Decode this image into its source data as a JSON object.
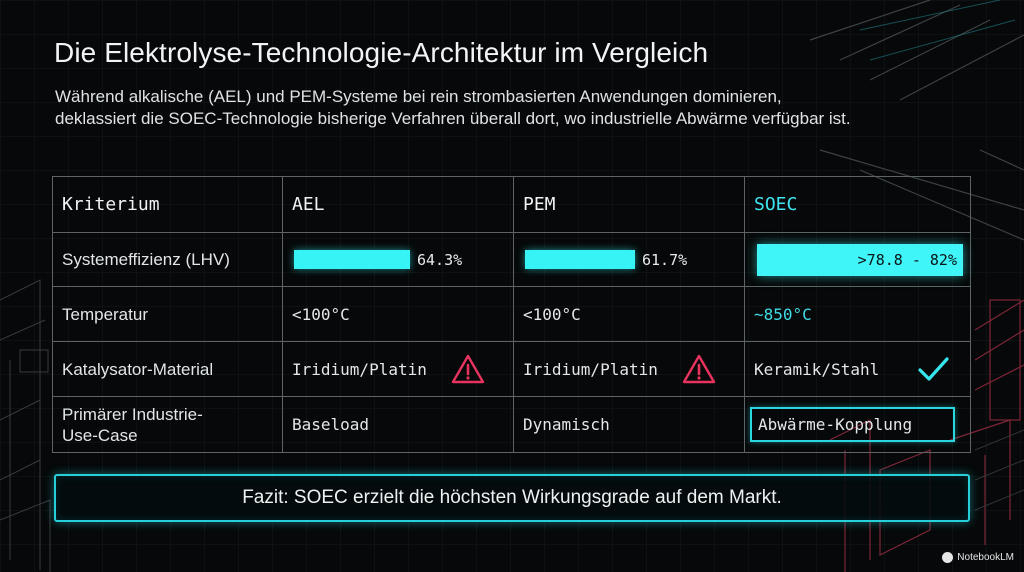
{
  "title": "Die Elektrolyse-Technologie-Architektur im Vergleich",
  "subtitle_line1": "Während alkalische (AEL) und PEM-Systeme bei rein strombasierten Anwendungen dominieren,",
  "subtitle_line2": "deklassiert die SOEC-Technologie bisherige Verfahren überall dort, wo industrielle Abwärme verfügbar ist.",
  "table": {
    "headers": [
      "Kriterium",
      "AEL",
      "PEM",
      "SOEC"
    ],
    "rows": [
      {
        "label": "Systemeffizienz (LHV)",
        "ael": "64.3%",
        "ael_level": 0.643,
        "pem": "61.7%",
        "pem_level": 0.617,
        "soec": ">78.8 - 82%"
      },
      {
        "label": "Temperatur",
        "ael": "<100°C",
        "pem": "<100°C",
        "soec": "~850°C"
      },
      {
        "label": "Katalysator-Material",
        "ael": "Iridium/Platin",
        "ael_icon": "warning-icon",
        "pem": "Iridium/Platin",
        "pem_icon": "warning-icon",
        "soec": "Keramik/Stahl",
        "soec_icon": "checkmark-icon"
      },
      {
        "label_line1": "Primärer Industrie-",
        "label_line2": "Use-Case",
        "ael": "Baseload",
        "pem": "Dynamisch",
        "soec": "Abwärme-Kopplung"
      }
    ]
  },
  "conclusion": "Fazit: SOEC erzielt die höchsten Wirkungsgrade auf dem Markt.",
  "brand": "NotebookLM",
  "colors": {
    "accent": "#36f3f6",
    "warning": "#e8335f",
    "background": "#060809"
  }
}
